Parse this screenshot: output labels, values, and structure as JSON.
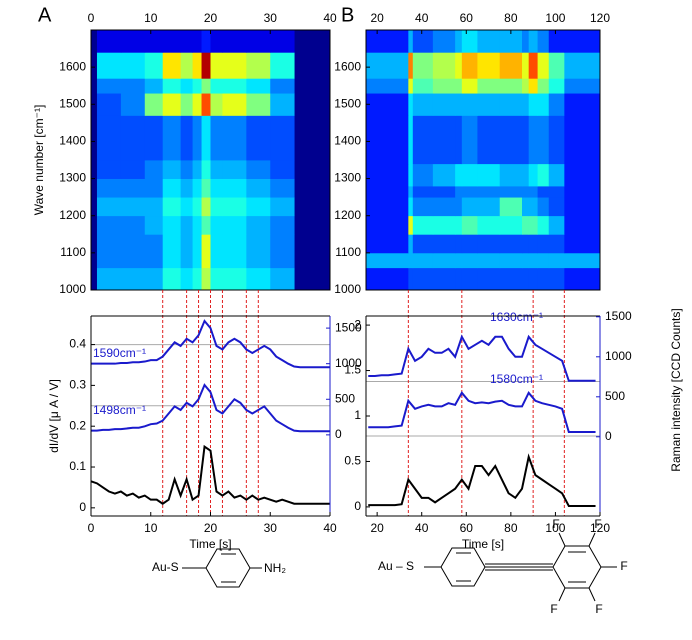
{
  "chart_data": [
    {
      "type": "heatmap",
      "panel_label": "A",
      "ylabel": "Wave number [cm⁻¹]",
      "background_color": "#00008f",
      "xlim": [
        0,
        40
      ],
      "xticks": [
        0,
        10,
        20,
        30,
        40
      ],
      "ylim": [
        1000,
        1700
      ],
      "yticks": [
        1000,
        1100,
        1200,
        1300,
        1400,
        1500,
        1600
      ],
      "xbins": [
        1,
        5,
        9,
        12,
        15,
        17,
        18.5,
        20,
        22,
        26,
        30,
        34
      ],
      "ybins": [
        1000,
        1060,
        1150,
        1200,
        1250,
        1300,
        1350,
        1470,
        1530,
        1570,
        1640,
        1700
      ],
      "z": [
        [
          0.3,
          0.3,
          0.3,
          0.4,
          0.35,
          0.4,
          0.55,
          0.4,
          0.4,
          0.35,
          0.3
        ],
        [
          0.25,
          0.25,
          0.25,
          0.35,
          0.3,
          0.35,
          0.6,
          0.35,
          0.35,
          0.3,
          0.25
        ],
        [
          0.25,
          0.25,
          0.3,
          0.35,
          0.3,
          0.35,
          0.45,
          0.35,
          0.35,
          0.3,
          0.25
        ],
        [
          0.3,
          0.3,
          0.3,
          0.4,
          0.35,
          0.4,
          0.55,
          0.4,
          0.4,
          0.35,
          0.3
        ],
        [
          0.25,
          0.25,
          0.25,
          0.35,
          0.3,
          0.35,
          0.45,
          0.35,
          0.35,
          0.3,
          0.25
        ],
        [
          0.2,
          0.2,
          0.25,
          0.3,
          0.25,
          0.3,
          0.4,
          0.3,
          0.3,
          0.25,
          0.2
        ],
        [
          0.2,
          0.2,
          0.2,
          0.25,
          0.2,
          0.25,
          0.35,
          0.25,
          0.25,
          0.2,
          0.2
        ],
        [
          0.2,
          0.25,
          0.5,
          0.6,
          0.5,
          0.6,
          0.8,
          0.55,
          0.6,
          0.5,
          0.3
        ],
        [
          0.25,
          0.25,
          0.3,
          0.4,
          0.35,
          0.4,
          0.5,
          0.4,
          0.4,
          0.35,
          0.25
        ],
        [
          0.35,
          0.35,
          0.4,
          0.65,
          0.55,
          0.65,
          0.95,
          0.6,
          0.6,
          0.55,
          0.4
        ],
        [
          0.1,
          0.1,
          0.1,
          0.1,
          0.1,
          0.1,
          0.15,
          0.1,
          0.1,
          0.1,
          0.1
        ]
      ]
    },
    {
      "type": "line",
      "ylabel": "dI/dV [μ A / V]",
      "xlabel": "Time [s]",
      "xlim": [
        0,
        40
      ],
      "xticks": [
        0,
        10,
        20,
        30,
        40
      ],
      "ylim": [
        -0.02,
        0.47
      ],
      "yticks": [
        0,
        0.1,
        0.2,
        0.3,
        0.4
      ],
      "y2lim": [
        -1140,
        1670
      ],
      "y2ticks": [
        0,
        500,
        1000,
        1500
      ],
      "y2color": "#1a1acc",
      "hlines": [
        0.4,
        0.25
      ],
      "hline_color": "#aaaaaa",
      "vlines": [
        12,
        16,
        18,
        20,
        22,
        26,
        28
      ],
      "vline_color": "#e02020",
      "x": [
        0,
        1,
        2,
        3,
        4,
        5,
        6,
        7,
        8,
        9,
        10,
        11,
        12,
        13,
        14,
        15,
        16,
        17,
        18,
        19,
        20,
        21,
        22,
        23,
        24,
        25,
        26,
        27,
        28,
        29,
        30,
        31,
        32,
        33,
        34,
        35,
        36,
        37,
        38,
        39,
        40
      ],
      "series": [
        {
          "name": "1590cm⁻¹",
          "color": "#1a1acc",
          "axis": "y2",
          "values": [
            1000,
            1000,
            1000,
            1000,
            1000,
            1010,
            1010,
            1020,
            1020,
            1030,
            1050,
            1050,
            1100,
            1200,
            1300,
            1250,
            1350,
            1300,
            1400,
            1600,
            1500,
            1250,
            1200,
            1300,
            1350,
            1300,
            1200,
            1150,
            1200,
            1250,
            1200,
            1100,
            1050,
            1000,
            960,
            950,
            950,
            950,
            950,
            950,
            950
          ]
        },
        {
          "name": "1498cm⁻¹",
          "color": "#1a1acc",
          "axis": "y2",
          "values": [
            60,
            60,
            70,
            70,
            80,
            80,
            90,
            100,
            100,
            120,
            150,
            160,
            200,
            300,
            400,
            350,
            450,
            400,
            500,
            700,
            600,
            350,
            300,
            400,
            500,
            450,
            350,
            300,
            350,
            400,
            300,
            200,
            150,
            100,
            60,
            50,
            50,
            50,
            50,
            50,
            50
          ]
        },
        {
          "color": "#000000",
          "values": [
            0.065,
            0.06,
            0.05,
            0.04,
            0.035,
            0.04,
            0.03,
            0.035,
            0.025,
            0.03,
            0.02,
            0.02,
            0.01,
            0.02,
            0.07,
            0.03,
            0.07,
            0.02,
            0.03,
            0.15,
            0.14,
            0.04,
            0.03,
            0.04,
            0.025,
            0.03,
            0.02,
            0.03,
            0.02,
            0.025,
            0.02,
            0.015,
            0.02,
            0.015,
            0.01,
            0.01,
            0.01,
            0.01,
            0.01,
            0.01,
            0.01
          ]
        }
      ]
    },
    {
      "type": "heatmap",
      "panel_label": "B",
      "background_color": "#00008f",
      "xlim": [
        15,
        120
      ],
      "xticks": [
        20,
        40,
        60,
        80,
        100,
        120
      ],
      "ylim": [
        1000,
        1700
      ],
      "yticks": [
        1000,
        1100,
        1200,
        1300,
        1400,
        1500,
        1600
      ],
      "xbins": [
        15,
        34,
        36,
        45,
        55,
        58,
        65,
        75,
        85,
        88,
        92,
        97,
        104,
        120
      ],
      "ybins": [
        1000,
        1060,
        1100,
        1150,
        1200,
        1250,
        1280,
        1340,
        1470,
        1530,
        1570,
        1640,
        1700
      ],
      "z": [
        [
          0.15,
          0.2,
          0.2,
          0.2,
          0.2,
          0.2,
          0.2,
          0.2,
          0.2,
          0.2,
          0.2,
          0.2,
          0.15
        ],
        [
          0.3,
          0.3,
          0.3,
          0.3,
          0.3,
          0.3,
          0.3,
          0.3,
          0.3,
          0.3,
          0.3,
          0.3,
          0.3
        ],
        [
          0.15,
          0.3,
          0.2,
          0.2,
          0.2,
          0.2,
          0.2,
          0.2,
          0.2,
          0.2,
          0.2,
          0.2,
          0.15
        ],
        [
          0.15,
          0.6,
          0.4,
          0.4,
          0.4,
          0.45,
          0.4,
          0.4,
          0.45,
          0.45,
          0.4,
          0.3,
          0.15
        ],
        [
          0.15,
          0.35,
          0.25,
          0.25,
          0.25,
          0.3,
          0.3,
          0.45,
          0.3,
          0.3,
          0.25,
          0.2,
          0.15
        ],
        [
          0.15,
          0.3,
          0.2,
          0.2,
          0.25,
          0.25,
          0.25,
          0.25,
          0.25,
          0.25,
          0.2,
          0.2,
          0.15
        ],
        [
          0.15,
          0.35,
          0.25,
          0.3,
          0.35,
          0.35,
          0.35,
          0.3,
          0.3,
          0.35,
          0.4,
          0.3,
          0.15
        ],
        [
          0.15,
          0.35,
          0.2,
          0.2,
          0.2,
          0.25,
          0.2,
          0.2,
          0.2,
          0.25,
          0.25,
          0.2,
          0.15
        ],
        [
          0.15,
          0.35,
          0.3,
          0.3,
          0.3,
          0.3,
          0.3,
          0.3,
          0.3,
          0.35,
          0.35,
          0.25,
          0.15
        ],
        [
          0.25,
          0.6,
          0.45,
          0.5,
          0.5,
          0.6,
          0.5,
          0.5,
          0.55,
          0.65,
          0.5,
          0.4,
          0.25
        ],
        [
          0.3,
          0.75,
          0.5,
          0.55,
          0.6,
          0.7,
          0.65,
          0.7,
          0.6,
          0.8,
          0.6,
          0.45,
          0.3
        ],
        [
          0.15,
          0.3,
          0.2,
          0.25,
          0.3,
          0.35,
          0.3,
          0.3,
          0.25,
          0.3,
          0.25,
          0.15,
          0.15
        ]
      ]
    },
    {
      "type": "line",
      "xlabel": "Time [s]",
      "y2label": "Raman intensity [CCD Counts]",
      "xlim": [
        15,
        120
      ],
      "xticks": [
        20,
        40,
        60,
        80,
        100,
        120
      ],
      "ylim": [
        -0.1,
        2.1
      ],
      "yticks": [
        0,
        0.5,
        1,
        1.5,
        2
      ],
      "y2lim": [
        -990,
        1510
      ],
      "y2ticks": [
        0,
        500,
        1000,
        1500
      ],
      "y2color": "#1a1acc",
      "hlines": [
        1.38,
        0.78
      ],
      "hline_color": "#aaaaaa",
      "vlines": [
        34,
        58,
        90,
        104
      ],
      "vline_color": "#e02020",
      "x": [
        16,
        19,
        22,
        25,
        28,
        31,
        34,
        37,
        40,
        43,
        46,
        49,
        52,
        55,
        58,
        61,
        64,
        67,
        70,
        73,
        76,
        79,
        82,
        85,
        88,
        91,
        94,
        97,
        100,
        103,
        106,
        109,
        112,
        115,
        118
      ],
      "series": [
        {
          "name": "1630cm⁻¹",
          "color": "#1a1acc",
          "axis": "y2",
          "values": [
            760,
            760,
            770,
            770,
            780,
            790,
            1100,
            950,
            1000,
            1100,
            1050,
            1050,
            1100,
            1000,
            1250,
            1100,
            1150,
            1200,
            1150,
            1250,
            1250,
            1100,
            1000,
            1000,
            1250,
            1150,
            1100,
            1050,
            1000,
            950,
            700,
            700,
            700,
            700,
            700
          ]
        },
        {
          "name": "1580cm⁻¹",
          "color": "#1a1acc",
          "axis": "y2",
          "values": [
            120,
            120,
            120,
            120,
            130,
            140,
            450,
            350,
            380,
            400,
            380,
            380,
            420,
            400,
            550,
            450,
            420,
            430,
            420,
            440,
            450,
            400,
            380,
            380,
            550,
            450,
            420,
            400,
            380,
            350,
            60,
            60,
            60,
            60,
            60
          ]
        },
        {
          "color": "#000000",
          "values": [
            0.02,
            0.02,
            0.02,
            0.02,
            0.02,
            0.03,
            0.3,
            0.2,
            0.1,
            0.1,
            0.05,
            0.1,
            0.15,
            0.2,
            0.3,
            0.2,
            0.45,
            0.45,
            0.35,
            0.45,
            0.3,
            0.15,
            0.1,
            0.2,
            0.55,
            0.35,
            0.3,
            0.25,
            0.2,
            0.15,
            0.01,
            0.01,
            0.01,
            0.01,
            0.01
          ]
        }
      ]
    }
  ],
  "molecules": [
    {
      "anchor": "Au-S",
      "group": "NH₂"
    },
    {
      "anchor": "Au – S",
      "substituents": [
        "F",
        "F",
        "F",
        "F",
        "F"
      ]
    }
  ]
}
